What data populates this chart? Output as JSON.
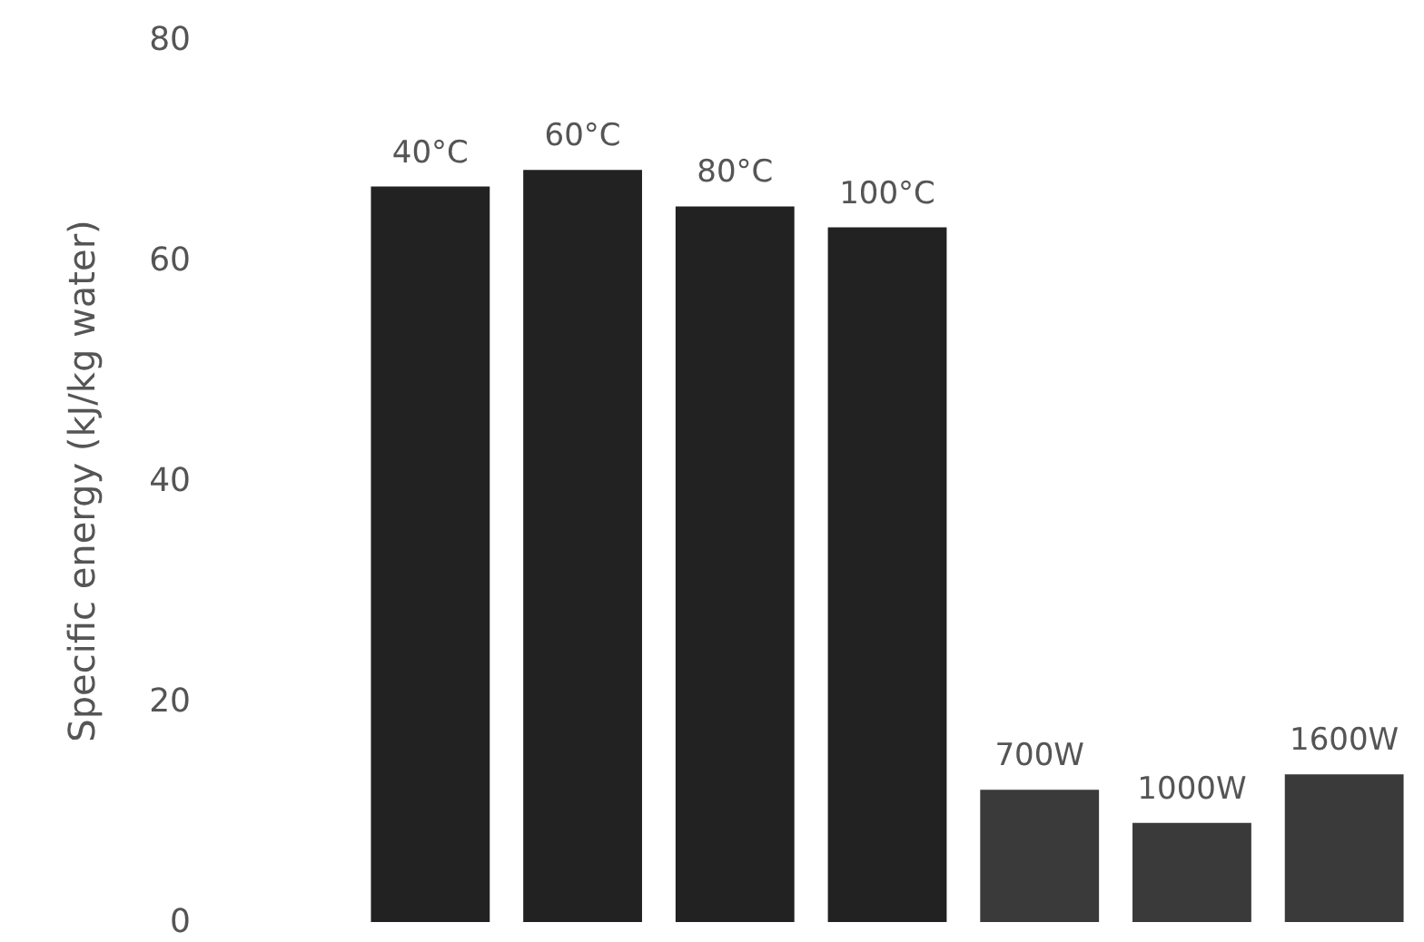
{
  "chart_data": {
    "type": "bar",
    "ylabel": "Specific energy (kJ/kg water)",
    "categories": [
      "40°C",
      "60°C",
      "80°C",
      "100°C",
      "700W",
      "1000W",
      "1600W"
    ],
    "values": [
      66.7,
      68.2,
      64.9,
      63,
      12,
      9,
      13.4
    ],
    "colors": [
      "#222222",
      "#222222",
      "#222222",
      "#222222",
      "#3a3a3a",
      "#3a3a3a",
      "#3a3a3a"
    ],
    "ylim": [
      0,
      80
    ],
    "yticks": [
      0,
      20,
      40,
      60,
      80
    ],
    "grid": false,
    "tick_labels": "y"
  }
}
